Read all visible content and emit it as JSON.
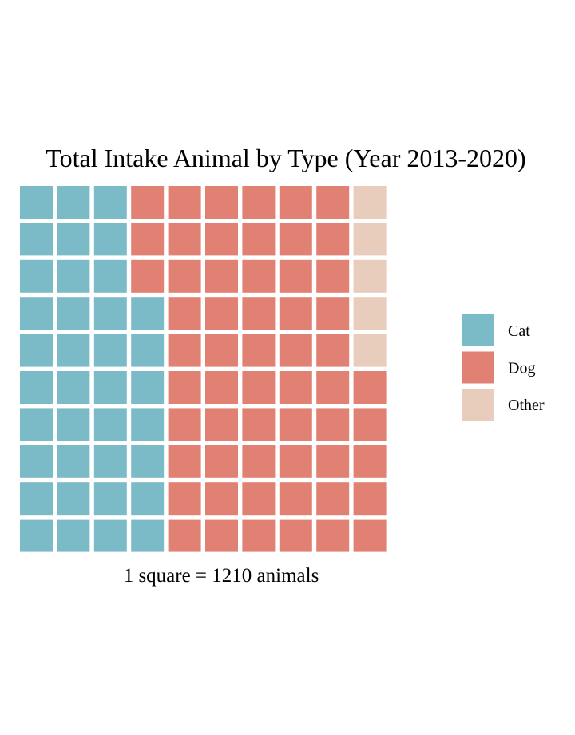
{
  "chart_data": {
    "type": "waffle",
    "title": "Total Intake Animal by Type (Year 2013-2020)",
    "caption": "1 square = 1210 animals",
    "rows": 10,
    "columns": 10,
    "fill_order": "column-major from bottom-left",
    "categories": [
      "Cat",
      "Dog",
      "Other"
    ],
    "values": [
      37,
      58,
      5
    ],
    "colors": [
      "#7bbbc8",
      "#e08174",
      "#e8cdbd"
    ],
    "legend_position": "right"
  }
}
